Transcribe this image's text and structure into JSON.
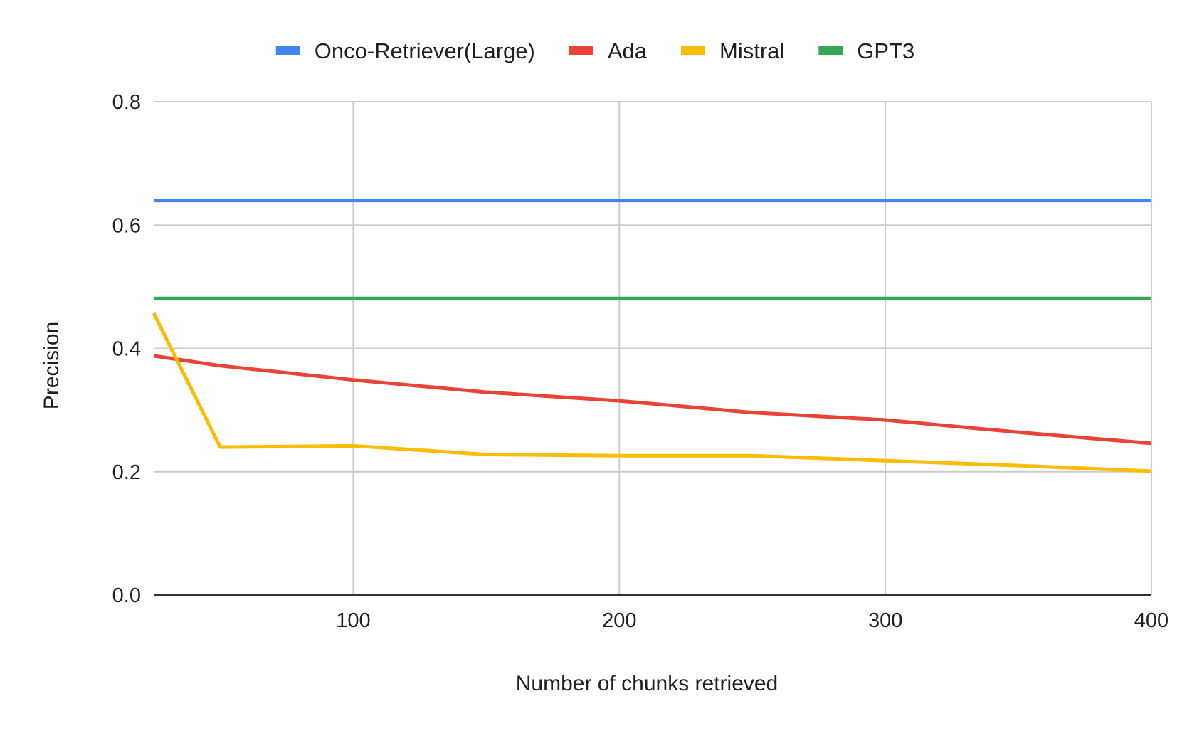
{
  "chart_data": {
    "type": "line",
    "xlabel": "Number of chunks retrieved",
    "ylabel": "Precision",
    "xlim": [
      25,
      400
    ],
    "ylim": [
      0,
      0.8
    ],
    "x_ticks": [
      100,
      200,
      300,
      400
    ],
    "y_ticks": [
      0.0,
      0.2,
      0.4,
      0.6,
      0.8
    ],
    "y_tick_labels": [
      "0.0",
      "0.2",
      "0.4",
      "0.6",
      "0.8"
    ],
    "grid": true,
    "legend_position": "top",
    "series": [
      {
        "name": "Onco-Retriever(Large)",
        "color": "#4285F4",
        "x": [
          25,
          400
        ],
        "y": [
          0.64,
          0.64
        ]
      },
      {
        "name": "Ada",
        "color": "#EA4335",
        "x": [
          25,
          50,
          100,
          150,
          200,
          250,
          300,
          350,
          400
        ],
        "y": [
          0.388,
          0.372,
          0.349,
          0.329,
          0.315,
          0.296,
          0.284,
          0.264,
          0.246
        ]
      },
      {
        "name": "Mistral",
        "color": "#FBBC04",
        "x": [
          25,
          50,
          100,
          150,
          200,
          250,
          300,
          350,
          400
        ],
        "y": [
          0.457,
          0.24,
          0.242,
          0.228,
          0.226,
          0.226,
          0.218,
          0.21,
          0.201
        ]
      },
      {
        "name": "GPT3",
        "color": "#34A853",
        "x": [
          25,
          400
        ],
        "y": [
          0.481,
          0.481
        ]
      }
    ]
  }
}
